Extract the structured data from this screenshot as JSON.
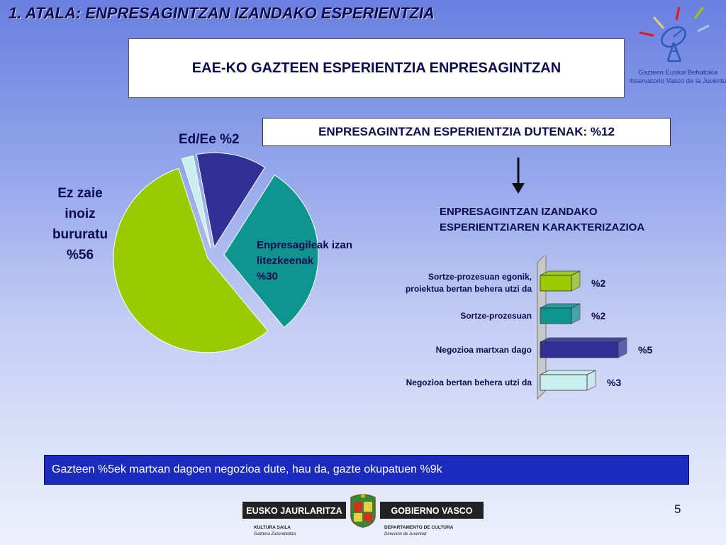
{
  "header": {
    "section_title": "1. ATALA: ENPRESAGINTZAN IZANDAKO ESPERIENTZIA",
    "main_title": "EAE-KO GAZTEEN ESPERIENTZIA ENPRESAGINTZAN"
  },
  "observatory": {
    "name_eu": "Gazteen Euskal Behatokia",
    "name_es": "Observatorio Vasco de la Juventud"
  },
  "experience_box": "ENPRESAGINTZAN ESPERIENTZIA DUTENAK: %12",
  "characterization_title_line1": "ENPRESAGINTZAN IZANDAKO",
  "characterization_title_line2": "ESPERIENTZIAREN KARAKTERIZAZIOA",
  "pie_labels": {
    "ez_zaie": [
      "Ez zaie",
      "inoiz",
      "bururatu",
      "%56"
    ],
    "ed_ee": "Ed/Ee %2",
    "enpresagileak": [
      "Enpresagileak izan",
      "litezkeenak",
      "%30"
    ]
  },
  "chart_data": [
    {
      "type": "pie",
      "slices": [
        {
          "label": "Enpresagintzan esperientzia dutenak",
          "value": 12,
          "color": "#303095"
        },
        {
          "label": "Enpresagileak izan litezkeenak",
          "value": 30,
          "color": "#0f9590"
        },
        {
          "label": "Ez zaie inoiz bururatu",
          "value": 56,
          "color": "#99cc00"
        },
        {
          "label": "Ed/Ee",
          "value": 2,
          "color": "#c8eeee"
        }
      ]
    },
    {
      "type": "bar",
      "orientation": "horizontal",
      "categories": [
        [
          "Sortze-prozesuan egonik,",
          "proiektua bertan behera utzi da"
        ],
        [
          "Sortze-prozesuan"
        ],
        [
          "Negozioa martxan dago"
        ],
        [
          "Negozioa bertan behera utzi da"
        ]
      ],
      "values": [
        2,
        2,
        5,
        3
      ],
      "value_labels": [
        "%2",
        "%2",
        "%5",
        "%3"
      ],
      "colors": [
        "#99cc00",
        "#0f9590",
        "#303095",
        "#c8eeee"
      ]
    }
  ],
  "footer": "Gazteen %5ek martxan dagoen negozioa dute, hau da, gazte okupatuen %9k",
  "page_number": "5",
  "government": {
    "left_name": "EUSKO JAURLARITZA",
    "right_name": "GOBIERNO VASCO",
    "left_dept": "KULTURA SAILA",
    "left_sub": "Gazteria Zuzendaritza",
    "right_dept": "DEPARTAMENTO DE CULTURA",
    "right_sub": "Dirección de Juventud"
  }
}
